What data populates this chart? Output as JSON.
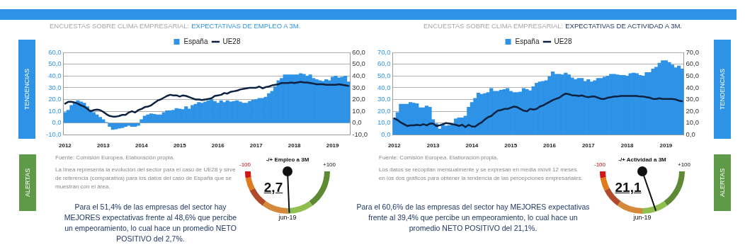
{
  "chart_data": [
    {
      "type": "bar",
      "title": "ENCUESTAS SOBRE CLIMA EMPRESARIAL:",
      "subtitle": "EXPECTATIVAS DE EMPLEO A 3M.",
      "categories": [
        "2012",
        null,
        null,
        null,
        null,
        null,
        null,
        null,
        null,
        null,
        null,
        null,
        "2013",
        null,
        null,
        null,
        null,
        null,
        null,
        null,
        null,
        null,
        null,
        null,
        "2014",
        null,
        null,
        null,
        null,
        null,
        null,
        null,
        null,
        null,
        null,
        null,
        "2015",
        null,
        null,
        null,
        null,
        null,
        null,
        null,
        null,
        null,
        null,
        null,
        "2016",
        null,
        null,
        null,
        null,
        null,
        null,
        null,
        null,
        null,
        null,
        null,
        "2017",
        null,
        null,
        null,
        null,
        null,
        null,
        null,
        null,
        null,
        null,
        null,
        "2018",
        null,
        null,
        null,
        null,
        null,
        null,
        null,
        null,
        null,
        null,
        null,
        "2019",
        null,
        null,
        null,
        null,
        null
      ],
      "series": [
        {
          "name": "España",
          "type": "bar",
          "color": "#2e93e6",
          "values": [
            9,
            11,
            15,
            17,
            19,
            18,
            17,
            14,
            11,
            9,
            7,
            5,
            3,
            0.5,
            -3,
            -5.5,
            -5,
            -4.5,
            -4,
            -3,
            -2,
            -3,
            -3,
            -2,
            3,
            6,
            7,
            8,
            7.5,
            7,
            7,
            9,
            10.5,
            10.5,
            11,
            12.5,
            12,
            11.5,
            14,
            12,
            15,
            16,
            17.5,
            17,
            18,
            19,
            20,
            18.5,
            17,
            19,
            17.5,
            19,
            18,
            18.5,
            19,
            18,
            17,
            17,
            18.5,
            19.5,
            20,
            21,
            21,
            22,
            25,
            27,
            31,
            36,
            38,
            41,
            41,
            41,
            41,
            41,
            42,
            41.5,
            40,
            41,
            38,
            37,
            36,
            35.5,
            37,
            36,
            39,
            40,
            38.5,
            39,
            40,
            35
          ]
        },
        {
          "name": "UE28",
          "type": "line",
          "color": "#0d2240",
          "values": [
            16.5,
            18,
            18,
            17.5,
            16.5,
            15,
            14,
            12,
            10,
            11,
            11.5,
            11,
            9.5,
            7.5,
            6,
            5.5,
            5.5,
            6,
            7,
            7,
            9,
            10,
            9,
            11,
            12,
            13.5,
            14,
            15,
            17,
            19,
            20,
            21.5,
            23,
            24,
            23.5,
            23.5,
            22.5,
            23.5,
            23,
            22,
            21,
            20,
            20,
            19.5,
            20,
            20.5,
            21,
            23,
            23.5,
            24,
            25.5,
            25,
            26.5,
            27,
            27.5,
            28.5,
            29,
            29.5,
            30,
            30,
            30,
            31,
            29.5,
            30.5,
            31,
            32,
            32.5,
            33,
            34,
            34,
            34,
            34.5,
            34,
            34.5,
            35,
            34.5,
            34.5,
            34,
            33.5,
            33,
            33,
            33,
            32.5,
            32.5,
            32.5,
            32.5,
            33,
            32.5,
            32,
            31.5
          ]
        }
      ],
      "ylim": [
        -10,
        60
      ],
      "yticks": [
        {
          "value": -10,
          "label": "-10,0"
        },
        {
          "value": 0,
          "label": "0,0"
        },
        {
          "value": 10,
          "label": "10,0"
        },
        {
          "value": 20,
          "label": "20,0"
        },
        {
          "value": 30,
          "label": "30,0"
        },
        {
          "value": 40,
          "label": "40,0"
        },
        {
          "value": 50,
          "label": "50,0"
        },
        {
          "value": 60,
          "label": "60,0"
        }
      ],
      "y2lim": [
        -10,
        60
      ],
      "y2ticks": [
        {
          "value": -10,
          "label": "-10,0"
        },
        {
          "value": 0,
          "label": "0,0"
        },
        {
          "value": 10,
          "label": "10,0"
        },
        {
          "value": 20,
          "label": "20,0"
        },
        {
          "value": 30,
          "label": "30,0"
        },
        {
          "value": 40,
          "label": "40,0"
        },
        {
          "value": 50,
          "label": "50,0"
        },
        {
          "value": 60,
          "label": "60,0"
        }
      ],
      "grid": "y",
      "legend": "top",
      "annotations": [
        "Fuente: Comisión Europea. Elaboración propia.",
        "La línea representa la evolución del sector para el caso de UE28 y sirve de referencia (comparativa) para los datos del caso de España que se muestran con el área.",
        "Para el 51,4% de las empresas del sector hay MEJORES expectativas frente al 48,6% que percibe un empeoramiento, lo cual hace un promedio NETO POSITIVO del 2,7%.",
        "TENDENCIAS",
        "ALERTAS"
      ]
    },
    {
      "type": "other",
      "title": "-/+ Empleo a 3M",
      "annotations": [
        "-100",
        "+100",
        "2,7",
        "jun-19"
      ]
    },
    {
      "type": "bar",
      "title": "ENCUESTAS SOBRE CLIMA EMPRESARIAL:",
      "subtitle": "EXPECTATIVAS DE ACTIVIDAD A 3M.",
      "categories": [
        "2012",
        null,
        null,
        null,
        null,
        null,
        null,
        null,
        null,
        null,
        null,
        null,
        "2013",
        null,
        null,
        null,
        null,
        null,
        null,
        null,
        null,
        null,
        null,
        null,
        "2014",
        null,
        null,
        null,
        null,
        null,
        null,
        null,
        null,
        null,
        null,
        null,
        "2015",
        null,
        null,
        null,
        null,
        null,
        null,
        null,
        null,
        null,
        null,
        null,
        "2016",
        null,
        null,
        null,
        null,
        null,
        null,
        null,
        null,
        null,
        null,
        null,
        "2017",
        null,
        null,
        null,
        null,
        null,
        null,
        null,
        null,
        null,
        null,
        null,
        "2018",
        null,
        null,
        null,
        null,
        null,
        null,
        null,
        null,
        null,
        null,
        null,
        "2019",
        null,
        null,
        null,
        null,
        null
      ],
      "series": [
        {
          "name": "España",
          "type": "bar",
          "color": "#2e93e6",
          "values": [
            14,
            19,
            26,
            26,
            26,
            27.5,
            27,
            26.5,
            23,
            23,
            24.5,
            23.5,
            13,
            9.5,
            5,
            8.5,
            7.5,
            8,
            9,
            13.5,
            14.5,
            14.5,
            16,
            23.5,
            27.5,
            31,
            35.5,
            34.5,
            35,
            36,
            39.5,
            37,
            37,
            38,
            38.5,
            39.5,
            37,
            36,
            36,
            36.5,
            39.5,
            38.5,
            37.5,
            41,
            44,
            45,
            45.5,
            46,
            49.5,
            53.5,
            51.5,
            51.5,
            51,
            52.5,
            51,
            48.5,
            47,
            48,
            48,
            45.5,
            47,
            45,
            46,
            48,
            48,
            49,
            50,
            51.5,
            51.5,
            51,
            50.5,
            50.5,
            50,
            52,
            52.5,
            52,
            50.5,
            50,
            53,
            53,
            56,
            57.5,
            61,
            63,
            63,
            61.5,
            59.5,
            57,
            58.5,
            56
          ]
        },
        {
          "name": "UE28",
          "type": "line",
          "color": "#0d2240",
          "values": [
            14,
            12.5,
            10.5,
            9,
            7.5,
            8,
            8,
            8.5,
            8,
            9,
            8,
            9.5,
            9.5,
            7.5,
            8,
            9,
            10,
            9.5,
            9,
            8.5,
            7.5,
            8.5,
            6.5,
            8.5,
            7,
            7,
            9,
            10.5,
            13,
            15,
            16,
            18.5,
            20.5,
            21,
            22,
            22,
            23,
            24,
            23.5,
            22,
            20.5,
            20,
            22,
            21.5,
            22,
            24,
            25,
            26.5,
            28,
            29.5,
            30.5,
            31.5,
            33.5,
            35,
            34.5,
            33.5,
            33.5,
            33,
            33.5,
            32.5,
            32,
            32.5,
            32.5,
            31.5,
            30.5,
            30.5,
            31.5,
            32,
            32.5,
            32.5,
            33,
            33,
            33,
            33,
            33,
            33,
            32.5,
            32.5,
            32,
            31.5,
            30.5,
            30.5,
            31,
            30.5,
            30.5,
            30.5,
            30.5,
            30,
            29,
            28.5
          ]
        }
      ],
      "ylim": [
        0,
        70
      ],
      "yticks": [
        {
          "value": 0,
          "label": "0,0"
        },
        {
          "value": 10,
          "label": "10,0"
        },
        {
          "value": 20,
          "label": "20,0"
        },
        {
          "value": 30,
          "label": "30,0"
        },
        {
          "value": 40,
          "label": "40,0"
        },
        {
          "value": 50,
          "label": "50,0"
        },
        {
          "value": 60,
          "label": "60,0"
        },
        {
          "value": 70,
          "label": "70,0"
        }
      ],
      "y2lim": [
        0,
        70
      ],
      "y2ticks": [
        {
          "value": 0,
          "label": "0,0"
        },
        {
          "value": 10,
          "label": "10,0"
        },
        {
          "value": 20,
          "label": "20,0"
        },
        {
          "value": 30,
          "label": "30,0"
        },
        {
          "value": 40,
          "label": "40,0"
        },
        {
          "value": 50,
          "label": "50,0"
        },
        {
          "value": 60,
          "label": "60,0"
        },
        {
          "value": 70,
          "label": "70,0"
        }
      ],
      "grid": "y",
      "legend": "top",
      "annotations": [
        "Fuente: Comisión Europea. Elaboración propia.",
        "Los datos se recopilan mensualmente y se expresan en media móvil 12 meses en los dos gráficos para obtener la tendencia de las percepciones empresariales.",
        "Para el 60,6% de las empresas del sector hay MEJORES expectativas frente al 39,4% que percibe un empeoramiento, lo cual hace un promedio NETO POSITIVO del 21,1%.",
        "TENDENCIAS",
        "ALERTAS"
      ]
    },
    {
      "type": "other",
      "title": "-/+ Actividad a 3M",
      "annotations": [
        "-100",
        "+100",
        "21,1",
        "jun-19"
      ]
    }
  ]
}
